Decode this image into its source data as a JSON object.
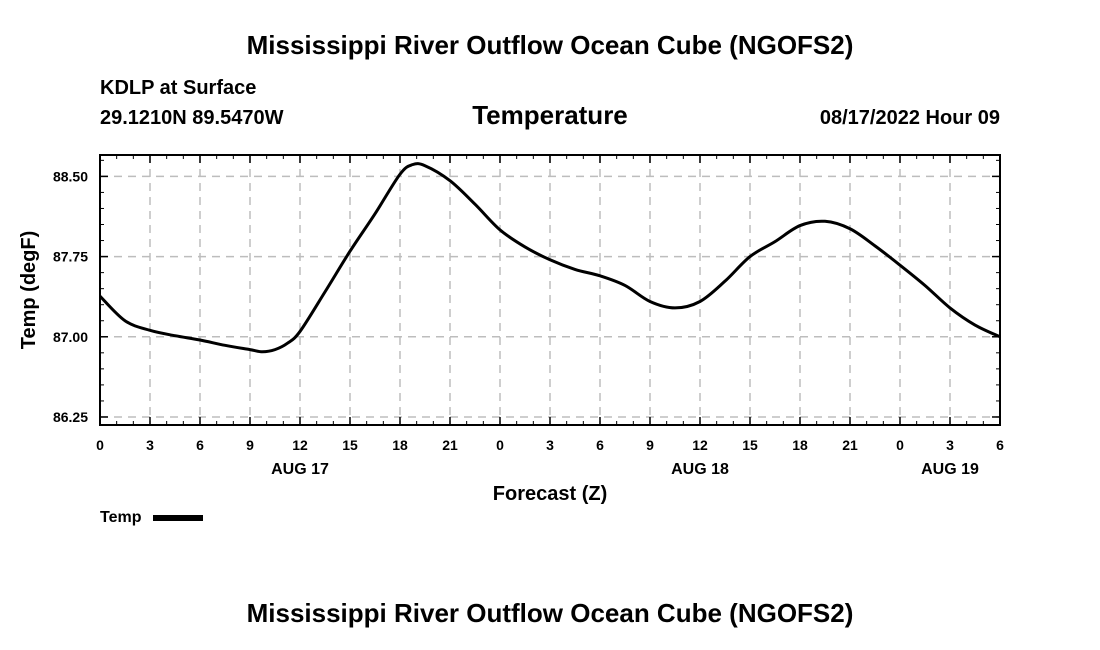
{
  "header": {
    "main_title": "Mississippi River Outflow Ocean Cube (NGOFS2)",
    "station": "KDLP at Surface",
    "coords": "29.1210N  89.5470W",
    "chart_title": "Temperature",
    "datetime": "08/17/2022 Hour 09"
  },
  "footer": {
    "title": "Mississippi River Outflow Ocean Cube (NGOFS2)"
  },
  "legend": {
    "label": "Temp"
  },
  "chart_data": {
    "type": "line",
    "title": "Temperature",
    "xlabel": "Forecast (Z)",
    "ylabel": "Temp (degF)",
    "xlim": [
      0,
      54
    ],
    "ylim": [
      86.175,
      88.7
    ],
    "grid": true,
    "legend_placement": "bottom-left",
    "x_ticks": [
      0,
      3,
      6,
      9,
      12,
      15,
      18,
      21,
      24,
      27,
      30,
      33,
      36,
      39,
      42,
      45,
      48,
      51,
      54
    ],
    "x_tick_labels": [
      "0",
      "3",
      "6",
      "9",
      "12",
      "15",
      "18",
      "21",
      "0",
      "3",
      "6",
      "9",
      "12",
      "15",
      "18",
      "21",
      "0",
      "3",
      "6"
    ],
    "date_labels": [
      {
        "x": 12,
        "label": "AUG 17"
      },
      {
        "x": 36,
        "label": "AUG 18"
      },
      {
        "x": 51,
        "label": "AUG 19"
      }
    ],
    "y_ticks": [
      86.25,
      87.0,
      87.75,
      88.5
    ],
    "y_tick_labels": [
      "86.25",
      "87.00",
      "87.75",
      "88.50"
    ],
    "series": [
      {
        "name": "Temp",
        "color": "#000000",
        "x": [
          0,
          1.5,
          3,
          4.5,
          6,
          7.5,
          9,
          9.75,
          10.5,
          11.25,
          12,
          13.5,
          15,
          16.5,
          18,
          18.75,
          19.5,
          21,
          22.5,
          24,
          25.5,
          27,
          28.5,
          30,
          31.5,
          33,
          34.5,
          36,
          37.5,
          39,
          40.5,
          42,
          43.5,
          45,
          46.5,
          48,
          49.5,
          51,
          52.5,
          54
        ],
        "values": [
          87.38,
          87.15,
          87.06,
          87.01,
          86.97,
          86.92,
          86.88,
          86.86,
          86.88,
          86.94,
          87.05,
          87.42,
          87.8,
          88.15,
          88.52,
          88.61,
          88.6,
          88.46,
          88.24,
          88.0,
          87.84,
          87.72,
          87.63,
          87.57,
          87.48,
          87.33,
          87.27,
          87.33,
          87.52,
          87.75,
          87.89,
          88.04,
          88.08,
          88.01,
          87.85,
          87.67,
          87.48,
          87.27,
          87.11,
          87.0
        ]
      }
    ]
  }
}
